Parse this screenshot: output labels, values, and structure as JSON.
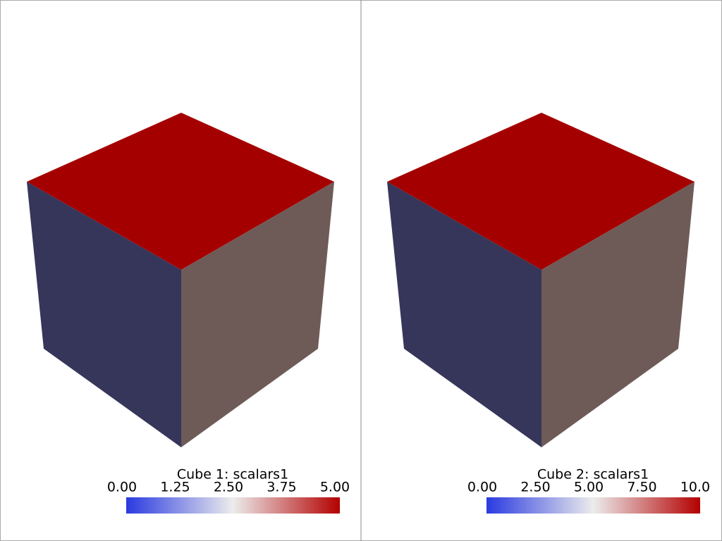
{
  "panels": [
    {
      "title": "Cube 1: scalars1",
      "range": [
        0,
        5
      ],
      "ticks": [
        {
          "value": 0,
          "label": "0.00"
        },
        {
          "value": 1.25,
          "label": "1.25"
        },
        {
          "value": 2.5,
          "label": "2.50"
        },
        {
          "value": 3.75,
          "label": "3.75"
        },
        {
          "value": 5,
          "label": "5.00"
        }
      ]
    },
    {
      "title": "Cube 2: scalars1",
      "range": [
        0,
        10
      ],
      "ticks": [
        {
          "value": 0,
          "label": "0.00"
        },
        {
          "value": 2.5,
          "label": "2.50"
        },
        {
          "value": 5,
          "label": "5.00"
        },
        {
          "value": 7.5,
          "label": "7.50"
        },
        {
          "value": 10,
          "label": "10.0"
        }
      ]
    }
  ]
}
